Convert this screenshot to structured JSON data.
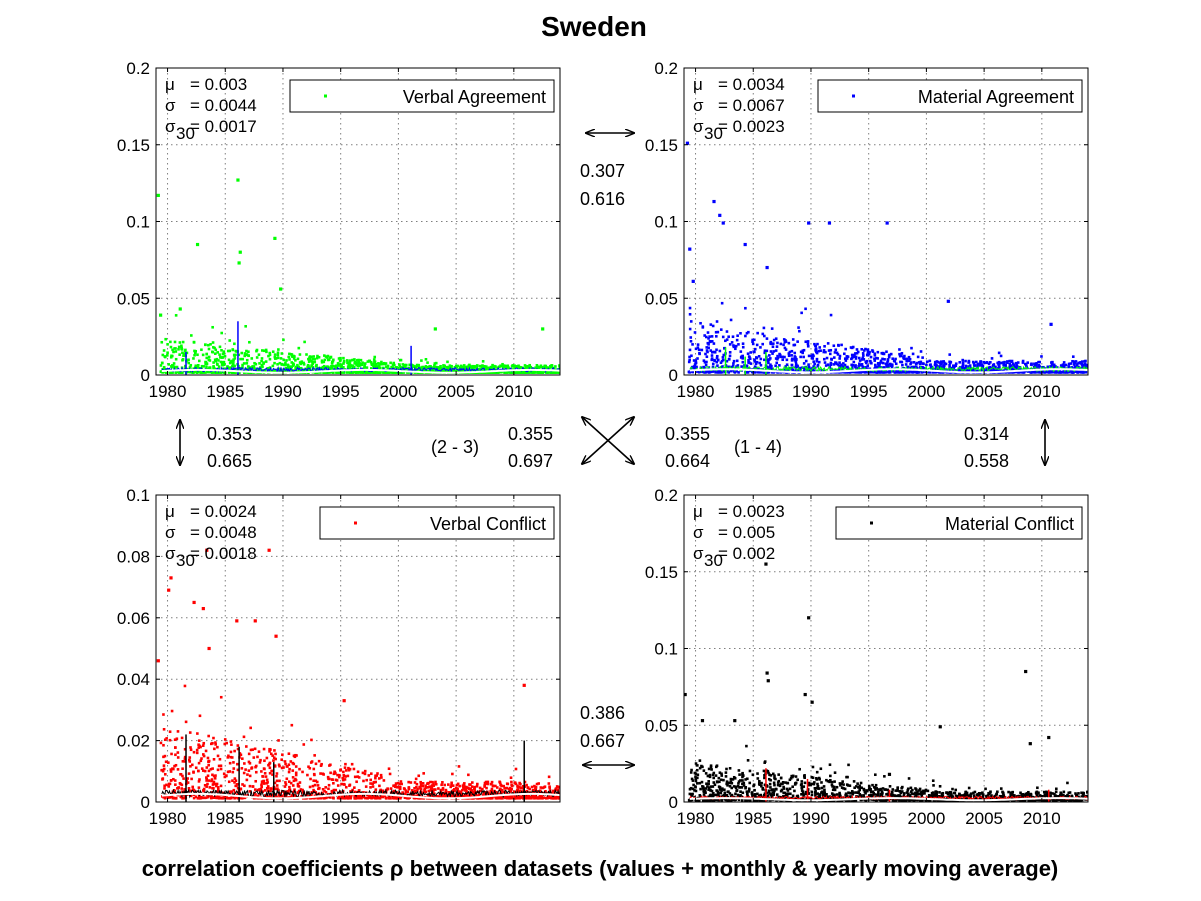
{
  "figure": {
    "title": "Sweden",
    "caption": "correlation coefficients ρ between datasets (values + monthly & yearly moving average)"
  },
  "chart_data": [
    {
      "type": "scatter",
      "name": "Verbal Agreement",
      "legend": "Verbal Agreement",
      "legend_position": "top-right",
      "color": "#00ff00",
      "trend_colors": [
        "#0000ff",
        "#ffffff"
      ],
      "xlim": [
        1979,
        2014
      ],
      "ylim": [
        0,
        0.2
      ],
      "xticks": [
        "1980",
        "1985",
        "1990",
        "1995",
        "2000",
        "2005",
        "2010"
      ],
      "yticks": [
        "0",
        "0.05",
        "0.1",
        "0.15",
        "0.2"
      ],
      "grid": true,
      "stats": {
        "mu": "= 0.003",
        "sigma": "= 0.0044",
        "sigma30": "= 0.0017"
      },
      "outliers": [
        [
          1979.2,
          0.117
        ],
        [
          1979.4,
          0.039
        ],
        [
          1982.6,
          0.085
        ],
        [
          1986.1,
          0.127
        ],
        [
          1986.3,
          0.08
        ],
        [
          1986.2,
          0.073
        ],
        [
          1989.3,
          0.089
        ],
        [
          1989.8,
          0.056
        ],
        [
          1981.1,
          0.043
        ],
        [
          2003.2,
          0.03
        ],
        [
          2012.5,
          0.03
        ]
      ],
      "spikes": [
        [
          1986.1,
          0.035
        ],
        [
          2001.1,
          0.019
        ],
        [
          1981.6,
          0.015
        ]
      ]
    },
    {
      "type": "scatter",
      "name": "Material Agreement",
      "legend": "Material Agreement",
      "legend_position": "top-right",
      "color": "#0000ff",
      "trend_colors": [
        "#00ff00",
        "#ffffff"
      ],
      "xlim": [
        1979,
        2014
      ],
      "ylim": [
        0,
        0.2
      ],
      "xticks": [
        "1980",
        "1985",
        "1990",
        "1995",
        "2000",
        "2005",
        "2010"
      ],
      "yticks": [
        "0",
        "0.05",
        "0.1",
        "0.15",
        "0.2"
      ],
      "grid": true,
      "stats": {
        "mu": "= 0.0034",
        "sigma": "= 0.0067",
        "sigma30": "= 0.0023"
      },
      "outliers": [
        [
          1979.3,
          0.151
        ],
        [
          1981.6,
          0.113
        ],
        [
          1982.1,
          0.104
        ],
        [
          1982.4,
          0.099
        ],
        [
          1984.3,
          0.085
        ],
        [
          1989.8,
          0.099
        ],
        [
          1991.6,
          0.099
        ],
        [
          1996.6,
          0.099
        ],
        [
          1979.5,
          0.082
        ],
        [
          1986.2,
          0.07
        ],
        [
          1979.8,
          0.061
        ],
        [
          2001.9,
          0.048
        ],
        [
          2010.8,
          0.033
        ]
      ],
      "spikes": [
        [
          1982.6,
          0.018
        ],
        [
          1986.1,
          0.015
        ],
        [
          1984.3,
          0.012
        ]
      ]
    },
    {
      "type": "scatter",
      "name": "Verbal Conflict",
      "legend": "Verbal Conflict",
      "legend_position": "top-right",
      "color": "#ff0000",
      "trend_colors": [
        "#000000",
        "#ffffff"
      ],
      "xlim": [
        1979,
        2014
      ],
      "ylim": [
        0,
        0.1
      ],
      "xticks": [
        "1980",
        "1985",
        "1990",
        "1995",
        "2000",
        "2005",
        "2010"
      ],
      "yticks": [
        "0",
        "0.02",
        "0.04",
        "0.06",
        "0.08",
        "0.1"
      ],
      "grid": true,
      "stats": {
        "mu": "= 0.0024",
        "sigma": "= 0.0048",
        "sigma30": "= 0.0018"
      },
      "outliers": [
        [
          1983.4,
          0.082
        ],
        [
          1988.8,
          0.082
        ],
        [
          1980.3,
          0.073
        ],
        [
          1980.1,
          0.069
        ],
        [
          1982.3,
          0.065
        ],
        [
          1983.1,
          0.063
        ],
        [
          1986.0,
          0.059
        ],
        [
          1987.6,
          0.059
        ],
        [
          1989.4,
          0.054
        ],
        [
          1979.2,
          0.046
        ],
        [
          1983.6,
          0.05
        ],
        [
          2010.9,
          0.038
        ],
        [
          1995.3,
          0.033
        ]
      ],
      "spikes": [
        [
          1981.6,
          0.022
        ],
        [
          2010.9,
          0.02
        ],
        [
          1986.2,
          0.018
        ],
        [
          1989.2,
          0.013
        ]
      ]
    },
    {
      "type": "scatter",
      "name": "Material Conflict",
      "legend": "Material Conflict",
      "legend_position": "top-right",
      "color": "#000000",
      "trend_colors": [
        "#ff0000",
        "#ffffff"
      ],
      "xlim": [
        1979,
        2014
      ],
      "ylim": [
        0,
        0.2
      ],
      "xticks": [
        "1980",
        "1985",
        "1990",
        "1995",
        "2000",
        "2005",
        "2010"
      ],
      "yticks": [
        "0",
        "0.05",
        "0.1",
        "0.15",
        "0.2"
      ],
      "grid": true,
      "stats": {
        "mu": "= 0.0023",
        "sigma": "= 0.005",
        "sigma30": "= 0.002"
      },
      "outliers": [
        [
          1986.1,
          0.155
        ],
        [
          1989.8,
          0.12
        ],
        [
          1979.1,
          0.07
        ],
        [
          2008.6,
          0.085
        ],
        [
          1986.2,
          0.084
        ],
        [
          1986.3,
          0.079
        ],
        [
          1989.5,
          0.07
        ],
        [
          1980.6,
          0.053
        ],
        [
          1983.4,
          0.053
        ],
        [
          1990.1,
          0.065
        ],
        [
          2001.2,
          0.049
        ],
        [
          2010.6,
          0.042
        ],
        [
          2009.0,
          0.038
        ],
        [
          1996.8,
          0.018
        ]
      ],
      "spikes": [
        [
          1986.1,
          0.022
        ],
        [
          1989.7,
          0.015
        ],
        [
          2010.6,
          0.008
        ],
        [
          1996.8,
          0.008
        ]
      ]
    }
  ],
  "correlations": {
    "top": [
      "0.307",
      "0.616"
    ],
    "bottom": [
      "0.386",
      "0.667"
    ],
    "left": [
      "0.353",
      "0.665"
    ],
    "right": [
      "0.314",
      "0.558"
    ],
    "cross_left": [
      "0.355",
      "0.697"
    ],
    "cross_right": [
      "0.355",
      "0.664"
    ],
    "cross_left_label": "(2 - 3)",
    "cross_right_label": "(1 - 4)"
  }
}
